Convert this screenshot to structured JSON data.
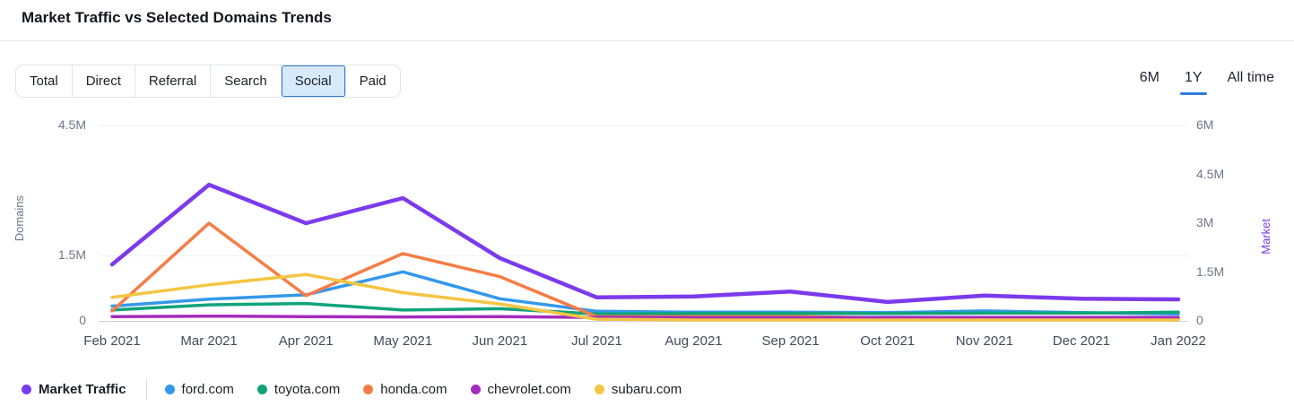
{
  "header": {
    "title": "Market Traffic vs Selected Domains Trends"
  },
  "filters": {
    "options": [
      "Total",
      "Direct",
      "Referral",
      "Search",
      "Social",
      "Paid"
    ],
    "selected": "Social"
  },
  "time_ranges": {
    "options": [
      "6M",
      "1Y",
      "All time"
    ],
    "selected": "1Y"
  },
  "accent_colors": {
    "selected_filter_bg": "#d7eafc",
    "selected_filter_border": "#2e7cd6",
    "range_underline": "#2e7cd8"
  },
  "chart_data": {
    "type": "line",
    "x": [
      "Feb 2021",
      "Mar 2021",
      "Apr 2021",
      "May 2021",
      "Jun 2021",
      "Jul 2021",
      "Aug 2021",
      "Sep 2021",
      "Oct 2021",
      "Nov 2021",
      "Dec 2021",
      "Jan 2022"
    ],
    "left_axis": {
      "label": "Domains",
      "ticks": [
        "4.5M",
        "1.5M",
        "0"
      ],
      "tick_values_m": [
        4.5,
        1.5,
        0
      ],
      "range_m": [
        0,
        4.5
      ]
    },
    "right_axis": {
      "label": "Market",
      "ticks": [
        "6M",
        "4.5M",
        "3M",
        "1.5M",
        "0"
      ],
      "tick_values_m": [
        6,
        4.5,
        3,
        1.5,
        0
      ],
      "range_m": [
        0,
        6
      ]
    },
    "grid": "horizontal-only",
    "legend_position": "bottom",
    "series": [
      {
        "name": "Market Traffic",
        "axis": "right",
        "color": "#7c3aed",
        "width": 4.5,
        "values_m": [
          1.73,
          4.18,
          3.0,
          3.77,
          1.93,
          0.72,
          0.75,
          0.9,
          0.58,
          0.78,
          0.68,
          0.66
        ]
      },
      {
        "name": "ford.com",
        "axis": "left",
        "color": "#3498ea",
        "width": 3.5,
        "values_m": [
          0.34,
          0.5,
          0.6,
          1.13,
          0.51,
          0.22,
          0.2,
          0.2,
          0.19,
          0.23,
          0.19,
          0.16
        ]
      },
      {
        "name": "toyota.com",
        "axis": "left",
        "color": "#10a37a",
        "width": 3.5,
        "values_m": [
          0.25,
          0.37,
          0.4,
          0.25,
          0.28,
          0.16,
          0.17,
          0.17,
          0.17,
          0.18,
          0.18,
          0.2
        ]
      },
      {
        "name": "honda.com",
        "axis": "left",
        "color": "#f57d45",
        "width": 3.5,
        "values_m": [
          0.23,
          2.25,
          0.58,
          1.55,
          1.02,
          0.1,
          0.1,
          0.1,
          0.07,
          0.06,
          0.05,
          0.04
        ]
      },
      {
        "name": "chevrolet.com",
        "axis": "left",
        "color": "#a42bc0",
        "width": 3.5,
        "values_m": [
          0.1,
          0.11,
          0.1,
          0.09,
          0.1,
          0.08,
          0.07,
          0.07,
          0.08,
          0.08,
          0.08,
          0.08
        ]
      },
      {
        "name": "subaru.com",
        "axis": "left",
        "color": "#f4c542",
        "width": 3.5,
        "values_m": [
          0.54,
          0.83,
          1.07,
          0.65,
          0.39,
          0.04,
          0.02,
          0.02,
          0.02,
          0.02,
          0.02,
          0.02
        ]
      }
    ]
  }
}
